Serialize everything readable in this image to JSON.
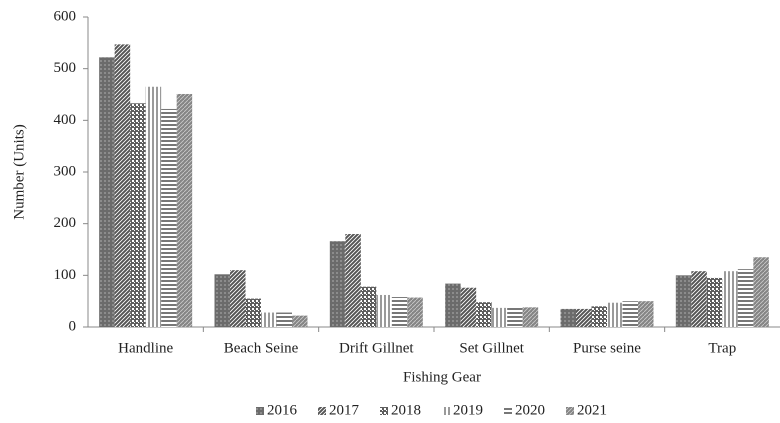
{
  "chart_data": {
    "type": "bar",
    "x_label": "Fishing Gear",
    "y_label": "Number (Units)",
    "categories": [
      "Handline",
      "Beach Seine",
      "Drift Gillnet",
      "Set Gillnet",
      "Purse seine",
      "Trap"
    ],
    "series": [
      {
        "name": "2016",
        "color": "#6b6b6b",
        "values": [
          522,
          102,
          166,
          84,
          35,
          100
        ]
      },
      {
        "name": "2017",
        "color": "#555555",
        "values": [
          547,
          110,
          180,
          76,
          35,
          108
        ]
      },
      {
        "name": "2018",
        "color": "#5e5e5e",
        "values": [
          433,
          55,
          78,
          48,
          40,
          95
        ]
      },
      {
        "name": "2019",
        "color": "#9a9a9a",
        "values": [
          465,
          28,
          62,
          37,
          47,
          108
        ]
      },
      {
        "name": "2020",
        "color": "#777777",
        "values": [
          422,
          28,
          58,
          38,
          50,
          112
        ]
      },
      {
        "name": "2021",
        "color": "#858585",
        "values": [
          451,
          22,
          57,
          38,
          50,
          135
        ]
      }
    ],
    "ylim": [
      0,
      600
    ],
    "yticks": [
      0,
      100,
      200,
      300,
      400,
      500,
      600
    ],
    "grid": false,
    "legend": "bottom"
  }
}
